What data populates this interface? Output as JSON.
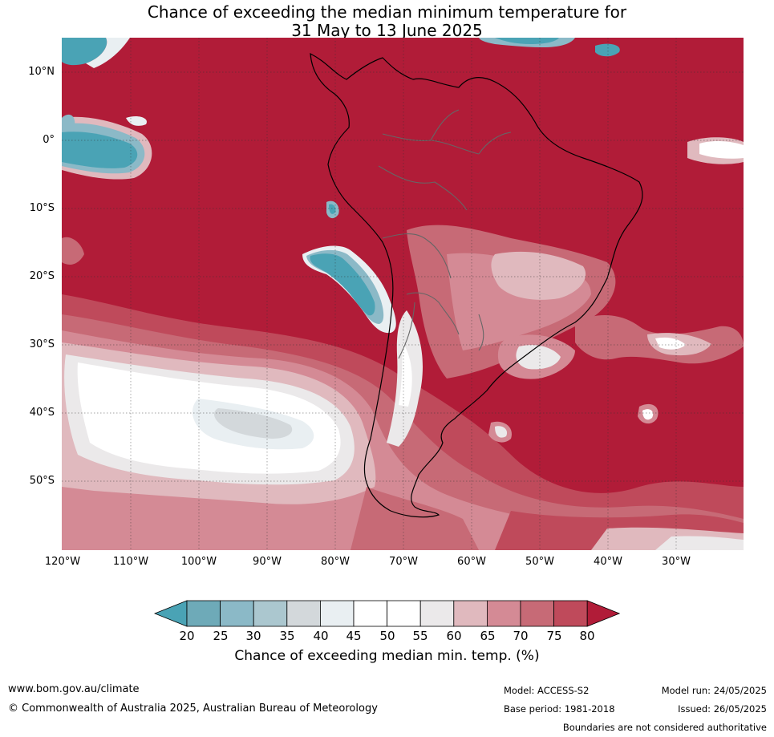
{
  "title": {
    "line1": "Chance of exceeding the median minimum temperature for",
    "line2": "31 May to 13 June 2025"
  },
  "lat_labels": [
    "10°N",
    "0°",
    "10°S",
    "20°S",
    "30°S",
    "40°S",
    "50°S"
  ],
  "lon_labels": [
    "120°W",
    "110°W",
    "100°W",
    "90°W",
    "80°W",
    "70°W",
    "60°W",
    "50°W",
    "40°W",
    "30°W"
  ],
  "colorbar": {
    "ticks": [
      "20",
      "25",
      "30",
      "35",
      "40",
      "45",
      "50",
      "55",
      "60",
      "65",
      "70",
      "75",
      "80"
    ],
    "colors": [
      "#4aa3b5",
      "#6eaab8",
      "#8bb9c7",
      "#abc7cf",
      "#d3d8db",
      "#e9eff2",
      "#ffffff",
      "#ffffff",
      "#ebe9ea",
      "#e0b9be",
      "#d48a95",
      "#c76a76",
      "#bf4a5b",
      "#b11c38"
    ],
    "label": "Chance of exceeding median min. temp. (%)"
  },
  "footer": {
    "website": "www.bom.gov.au/climate",
    "copyright": "© Commonwealth of Australia 2025, Australian Bureau of Meteorology",
    "model": "Model: ACCESS-S2",
    "base_period": "Base period: 1981-2018",
    "model_run": "Model run: 24/05/2025",
    "issued": "Issued: 26/05/2025",
    "boundaries": "Boundaries are not considered authoritative"
  }
}
